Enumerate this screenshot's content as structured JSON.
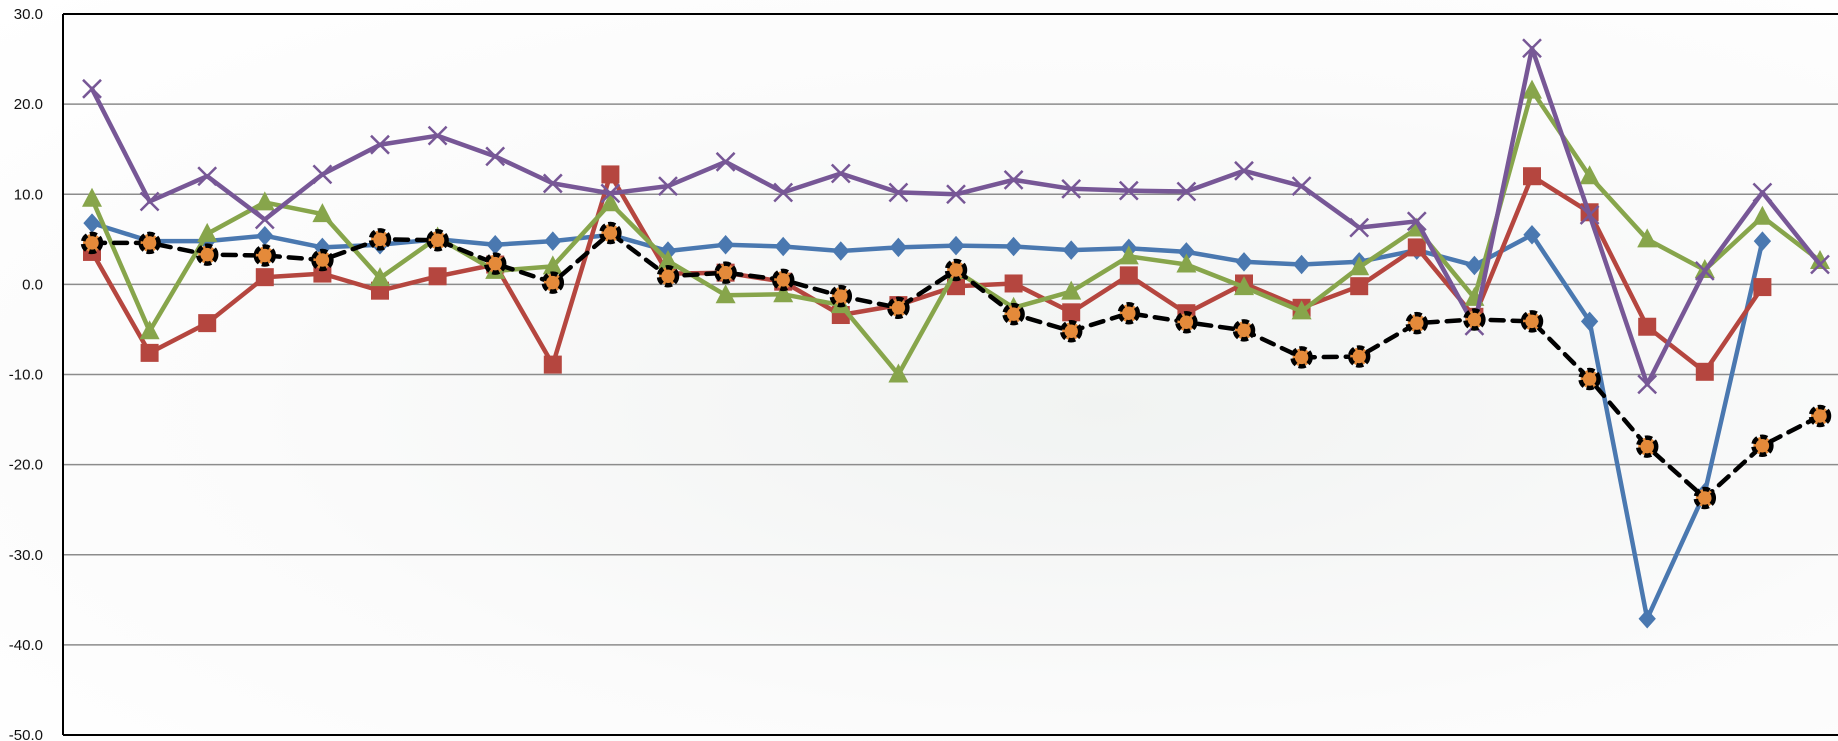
{
  "chart_data": {
    "type": "line",
    "title": "",
    "xlabel": "",
    "ylabel": "",
    "ylim": [
      -50,
      30
    ],
    "y_ticks": [
      "30.0",
      "20.0",
      "10.0",
      "0.0",
      "-10.0",
      "-20.0",
      "-30.0",
      "-40.0",
      "-50.0"
    ],
    "y_tick_values": [
      30,
      20,
      10,
      0,
      -10,
      -20,
      -30,
      -40,
      -50
    ],
    "grid": "horizontal",
    "legend": "none",
    "x": [
      1,
      2,
      3,
      4,
      5,
      6,
      7,
      8,
      9,
      10,
      11,
      12,
      13,
      14,
      15,
      16,
      17,
      18,
      19,
      20,
      21,
      22,
      23,
      24,
      25,
      26,
      27,
      28,
      29,
      30,
      31,
      32
    ],
    "series": [
      {
        "color": "#4a78b0",
        "marker": "diamond",
        "dash": "solid",
        "values": [
          6.8,
          4.8,
          4.8,
          5.4,
          4.1,
          4.4,
          5.0,
          4.4,
          4.8,
          5.5,
          3.7,
          4.4,
          4.2,
          3.7,
          4.1,
          4.3,
          4.2,
          3.8,
          4.0,
          3.6,
          2.5,
          2.2,
          2.5,
          3.8,
          2.1,
          5.5,
          -4.1,
          -37.1,
          -23.1,
          4.8,
          null,
          null
        ]
      },
      {
        "color": "#b5463f",
        "marker": "square",
        "dash": "solid",
        "values": [
          3.6,
          -7.6,
          -4.3,
          0.8,
          1.2,
          -0.7,
          0.9,
          2.2,
          -8.9,
          12.2,
          1.2,
          1.3,
          0.3,
          -3.4,
          -2.3,
          -0.2,
          0.1,
          -3.1,
          1.0,
          -3.2,
          0.1,
          -2.6,
          -0.2,
          4.1,
          -3.6,
          12.0,
          8.0,
          -4.7,
          -9.7,
          -0.3,
          null,
          null
        ]
      },
      {
        "color": "#87a54b",
        "marker": "triangle",
        "dash": "solid",
        "values": [
          9.5,
          -5.2,
          5.6,
          9.1,
          7.8,
          0.7,
          5.2,
          1.5,
          2.0,
          9.0,
          2.6,
          -1.2,
          -1.1,
          -2.3,
          -10.0,
          1.5,
          -2.6,
          -0.8,
          3.1,
          2.2,
          -0.3,
          -3.0,
          1.9,
          6.2,
          -1.5,
          21.5,
          12.0,
          5.0,
          1.6,
          7.5,
          2.6,
          null
        ]
      },
      {
        "color": "#775796",
        "marker": "x",
        "dash": "solid",
        "values": [
          21.7,
          9.2,
          12.0,
          7.2,
          12.2,
          15.5,
          16.5,
          14.2,
          11.2,
          10.1,
          10.9,
          13.6,
          10.2,
          12.3,
          10.2,
          10.0,
          11.6,
          10.6,
          10.4,
          10.3,
          12.6,
          10.9,
          6.3,
          7.0,
          -4.6,
          26.2,
          7.7,
          -11.1,
          1.5,
          10.2,
          2.2,
          null
        ]
      },
      {
        "color": "#000000",
        "marker": "circle",
        "marker_fill": "#e48a3a",
        "dash": "dashed",
        "values": [
          4.6,
          4.6,
          3.3,
          3.2,
          2.7,
          5.0,
          4.9,
          2.3,
          0.2,
          5.7,
          0.9,
          1.3,
          0.5,
          -1.3,
          -2.6,
          1.6,
          -3.3,
          -5.2,
          -3.2,
          -4.2,
          -5.1,
          -8.1,
          -8.0,
          -4.3,
          -3.9,
          -4.1,
          -10.5,
          -18.0,
          -23.7,
          -17.9,
          -14.6,
          null
        ]
      }
    ]
  }
}
